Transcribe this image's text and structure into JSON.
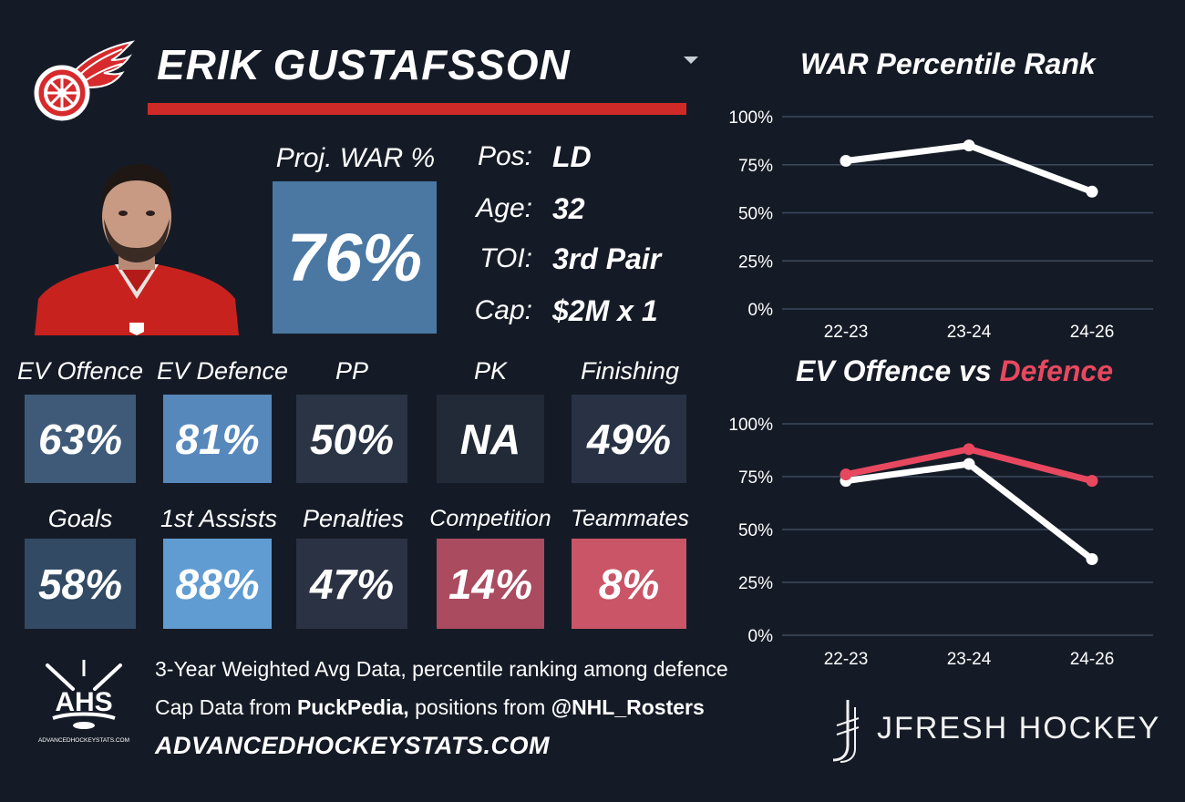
{
  "player": {
    "name": "ERIK GUSTAFSSON",
    "team_color": "#cf2a27"
  },
  "proj_war": {
    "label": "Proj. WAR %",
    "value": "76%"
  },
  "info": [
    {
      "label": "Pos:",
      "value": "LD"
    },
    {
      "label": "Age:",
      "value": "32"
    },
    {
      "label": "TOI:",
      "value": "3rd Pair"
    },
    {
      "label": "Cap:",
      "value": "$2M x 1"
    }
  ],
  "metrics": [
    {
      "label": "EV Offence",
      "value": "63%",
      "color": "#3e5a78"
    },
    {
      "label": "EV Defence",
      "value": "81%",
      "color": "#5688bc"
    },
    {
      "label": "PP",
      "value": "50%",
      "color": "#2a3445"
    },
    {
      "label": "PK",
      "value": "NA",
      "color": "#222a37"
    },
    {
      "label": "Finishing",
      "value": "49%",
      "color": "#283244"
    },
    {
      "label": "Goals",
      "value": "58%",
      "color": "#324a63"
    },
    {
      "label": "1st Assists",
      "value": "88%",
      "color": "#609cd2"
    },
    {
      "label": "Penalties",
      "value": "47%",
      "color": "#2b3243"
    },
    {
      "label": "Competition",
      "value": "14%",
      "color": "#aa4b5f"
    },
    {
      "label": "Teammates",
      "value": "8%",
      "color": "#c95567"
    }
  ],
  "footer": {
    "ahs_logo_text": "AHS",
    "ahs_logo_subtext": "ADVANCEDHOCKEYSTATS.COM",
    "line1": "3-Year Weighted Avg Data, percentile ranking among defence",
    "line2_prefix": "Cap Data from ",
    "line2_source": "PuckPedia,",
    "line2_mid": " positions from ",
    "line2_rosters": "@NHL_Rosters",
    "website": "ADVANCEDHOCKEYSTATS.COM",
    "brand": "JFRESH HOCKEY"
  },
  "chart_titles": {
    "war": "WAR Percentile Rank",
    "ev_prefix": "EV Offence vs ",
    "ev_highlight": "Defence"
  },
  "colors": {
    "background": "#151b26",
    "offence_line": "#ffffff",
    "defence_line": "#e8485f",
    "grid": "#3d4a5e"
  },
  "chart_data": [
    {
      "type": "line",
      "title": "WAR Percentile Rank",
      "categories": [
        "22-23",
        "23-24",
        "24-26"
      ],
      "series": [
        {
          "values": [
            77,
            85,
            61
          ]
        }
      ],
      "ylim": [
        0,
        100
      ],
      "yticks": [
        "0%",
        "25%",
        "50%",
        "75%",
        "100%"
      ],
      "grid": true
    },
    {
      "type": "line",
      "title": "EV Offence vs Defence",
      "categories": [
        "22-23",
        "23-24",
        "24-26"
      ],
      "series": [
        {
          "name": "EV Offence",
          "values": [
            73,
            81,
            36
          ]
        },
        {
          "name": "Defence",
          "values": [
            76,
            88,
            73
          ]
        }
      ],
      "ylim": [
        0,
        100
      ],
      "yticks": [
        "0%",
        "25%",
        "50%",
        "75%",
        "100%"
      ],
      "grid": true
    }
  ]
}
